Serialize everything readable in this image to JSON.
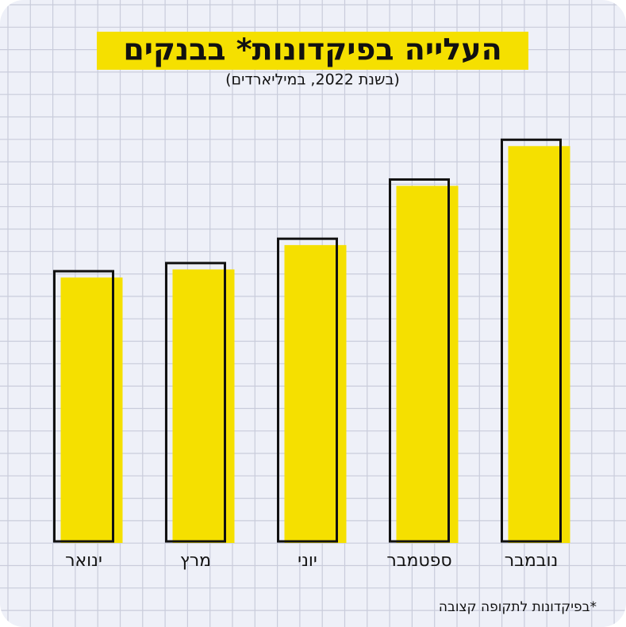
{
  "chart_data": {
    "type": "bar",
    "title": "העלייה בפיקדונות* בבנקים",
    "subtitle": "(בשנת 2022, במיליארדים)",
    "note": "*בפיקדונות לתקופה קצובה",
    "categories": [
      "ינואר",
      "מרץ",
      "יוני",
      "ספטמבר",
      "נובמבר"
    ],
    "values": [
      333,
      343,
      373,
      446,
      495
    ],
    "ylim": [
      0,
      550
    ],
    "color": "#f5e000"
  }
}
